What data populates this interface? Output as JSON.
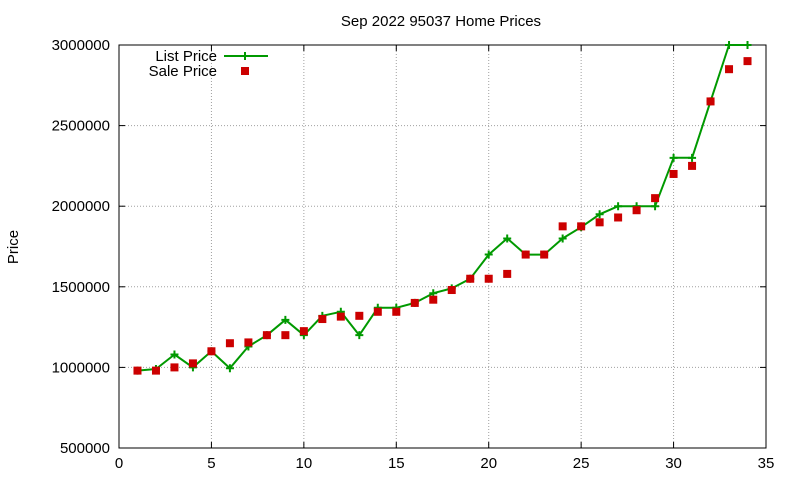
{
  "chart_data": {
    "type": "line",
    "title": "Sep 2022 95037 Home Prices",
    "xlabel": "",
    "ylabel": "Price",
    "xlim": [
      0,
      35
    ],
    "ylim": [
      500000,
      3000000
    ],
    "xticks": [
      0,
      5,
      10,
      15,
      20,
      25,
      30,
      35
    ],
    "yticks": [
      500000,
      1000000,
      1500000,
      2000000,
      2500000,
      3000000
    ],
    "grid": true,
    "legend_position": "top-left",
    "series": [
      {
        "name": "List Price",
        "style": "line+cross",
        "color": "#009900",
        "points": [
          [
            1,
            980000
          ],
          [
            2,
            990000
          ],
          [
            3,
            1080000
          ],
          [
            4,
            1000000
          ],
          [
            5,
            1100000
          ],
          [
            6,
            995000
          ],
          [
            7,
            1130000
          ],
          [
            8,
            1200000
          ],
          [
            9,
            1295000
          ],
          [
            10,
            1200000
          ],
          [
            11,
            1320000
          ],
          [
            12,
            1345000
          ],
          [
            13,
            1200000
          ],
          [
            14,
            1370000
          ],
          [
            15,
            1370000
          ],
          [
            16,
            1400000
          ],
          [
            17,
            1460000
          ],
          [
            18,
            1490000
          ],
          [
            19,
            1550000
          ],
          [
            20,
            1700000
          ],
          [
            21,
            1800000
          ],
          [
            22,
            1700000
          ],
          [
            23,
            1700000
          ],
          [
            24,
            1800000
          ],
          [
            25,
            1870000
          ],
          [
            26,
            1950000
          ],
          [
            27,
            2000000
          ],
          [
            28,
            2000000
          ],
          [
            29,
            2000000
          ],
          [
            30,
            2300000
          ],
          [
            31,
            2300000
          ],
          [
            32,
            2650000
          ],
          [
            33,
            3000000
          ],
          [
            34,
            3000000
          ]
        ]
      },
      {
        "name": "Sale Price",
        "style": "square",
        "color": "#cc0000",
        "points": [
          [
            1,
            980000
          ],
          [
            2,
            980000
          ],
          [
            3,
            1000000
          ],
          [
            4,
            1025000
          ],
          [
            5,
            1100000
          ],
          [
            6,
            1150000
          ],
          [
            7,
            1155000
          ],
          [
            8,
            1200000
          ],
          [
            9,
            1200000
          ],
          [
            10,
            1225000
          ],
          [
            11,
            1300000
          ],
          [
            12,
            1315000
          ],
          [
            13,
            1320000
          ],
          [
            14,
            1345000
          ],
          [
            15,
            1345000
          ],
          [
            16,
            1400000
          ],
          [
            17,
            1420000
          ],
          [
            18,
            1480000
          ],
          [
            19,
            1550000
          ],
          [
            20,
            1550000
          ],
          [
            21,
            1580000
          ],
          [
            22,
            1700000
          ],
          [
            23,
            1700000
          ],
          [
            24,
            1875000
          ],
          [
            25,
            1875000
          ],
          [
            26,
            1900000
          ],
          [
            27,
            1930000
          ],
          [
            28,
            1975000
          ],
          [
            29,
            2050000
          ],
          [
            30,
            2200000
          ],
          [
            31,
            2250000
          ],
          [
            32,
            2650000
          ],
          [
            33,
            2850000
          ],
          [
            34,
            2900000
          ]
        ]
      }
    ]
  }
}
